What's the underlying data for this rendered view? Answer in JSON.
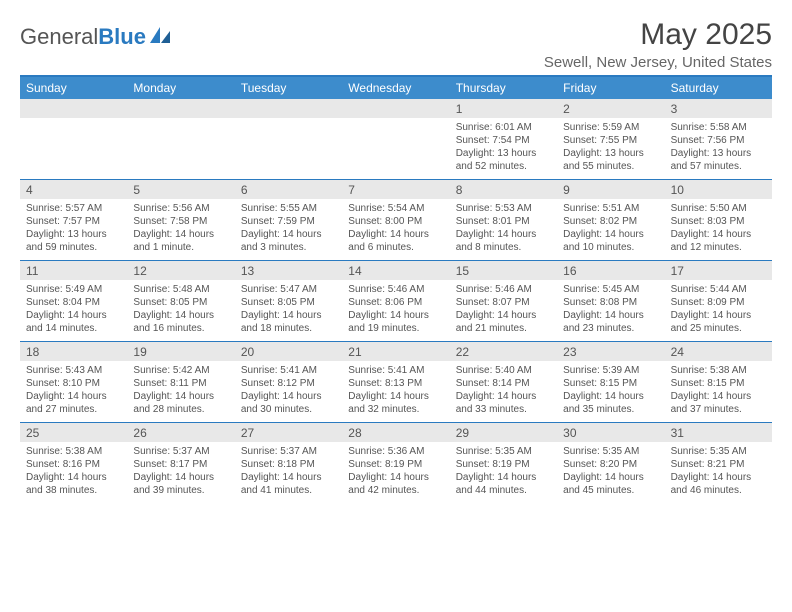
{
  "logo": {
    "word1": "General",
    "word2": "Blue"
  },
  "title": "May 2025",
  "location": "Sewell, New Jersey, United States",
  "colors": {
    "header_bar": "#3d8ccc",
    "border": "#2a7ac0",
    "num_bg": "#e8e8e8",
    "text": "#555555"
  },
  "days_of_week": [
    "Sunday",
    "Monday",
    "Tuesday",
    "Wednesday",
    "Thursday",
    "Friday",
    "Saturday"
  ],
  "weeks": [
    {
      "nums": [
        "",
        "",
        "",
        "",
        "1",
        "2",
        "3"
      ],
      "cells": [
        {},
        {},
        {},
        {},
        {
          "sunrise": "Sunrise: 6:01 AM",
          "sunset": "Sunset: 7:54 PM",
          "dl1": "Daylight: 13 hours",
          "dl2": "and 52 minutes."
        },
        {
          "sunrise": "Sunrise: 5:59 AM",
          "sunset": "Sunset: 7:55 PM",
          "dl1": "Daylight: 13 hours",
          "dl2": "and 55 minutes."
        },
        {
          "sunrise": "Sunrise: 5:58 AM",
          "sunset": "Sunset: 7:56 PM",
          "dl1": "Daylight: 13 hours",
          "dl2": "and 57 minutes."
        }
      ]
    },
    {
      "nums": [
        "4",
        "5",
        "6",
        "7",
        "8",
        "9",
        "10"
      ],
      "cells": [
        {
          "sunrise": "Sunrise: 5:57 AM",
          "sunset": "Sunset: 7:57 PM",
          "dl1": "Daylight: 13 hours",
          "dl2": "and 59 minutes."
        },
        {
          "sunrise": "Sunrise: 5:56 AM",
          "sunset": "Sunset: 7:58 PM",
          "dl1": "Daylight: 14 hours",
          "dl2": "and 1 minute."
        },
        {
          "sunrise": "Sunrise: 5:55 AM",
          "sunset": "Sunset: 7:59 PM",
          "dl1": "Daylight: 14 hours",
          "dl2": "and 3 minutes."
        },
        {
          "sunrise": "Sunrise: 5:54 AM",
          "sunset": "Sunset: 8:00 PM",
          "dl1": "Daylight: 14 hours",
          "dl2": "and 6 minutes."
        },
        {
          "sunrise": "Sunrise: 5:53 AM",
          "sunset": "Sunset: 8:01 PM",
          "dl1": "Daylight: 14 hours",
          "dl2": "and 8 minutes."
        },
        {
          "sunrise": "Sunrise: 5:51 AM",
          "sunset": "Sunset: 8:02 PM",
          "dl1": "Daylight: 14 hours",
          "dl2": "and 10 minutes."
        },
        {
          "sunrise": "Sunrise: 5:50 AM",
          "sunset": "Sunset: 8:03 PM",
          "dl1": "Daylight: 14 hours",
          "dl2": "and 12 minutes."
        }
      ]
    },
    {
      "nums": [
        "11",
        "12",
        "13",
        "14",
        "15",
        "16",
        "17"
      ],
      "cells": [
        {
          "sunrise": "Sunrise: 5:49 AM",
          "sunset": "Sunset: 8:04 PM",
          "dl1": "Daylight: 14 hours",
          "dl2": "and 14 minutes."
        },
        {
          "sunrise": "Sunrise: 5:48 AM",
          "sunset": "Sunset: 8:05 PM",
          "dl1": "Daylight: 14 hours",
          "dl2": "and 16 minutes."
        },
        {
          "sunrise": "Sunrise: 5:47 AM",
          "sunset": "Sunset: 8:05 PM",
          "dl1": "Daylight: 14 hours",
          "dl2": "and 18 minutes."
        },
        {
          "sunrise": "Sunrise: 5:46 AM",
          "sunset": "Sunset: 8:06 PM",
          "dl1": "Daylight: 14 hours",
          "dl2": "and 19 minutes."
        },
        {
          "sunrise": "Sunrise: 5:46 AM",
          "sunset": "Sunset: 8:07 PM",
          "dl1": "Daylight: 14 hours",
          "dl2": "and 21 minutes."
        },
        {
          "sunrise": "Sunrise: 5:45 AM",
          "sunset": "Sunset: 8:08 PM",
          "dl1": "Daylight: 14 hours",
          "dl2": "and 23 minutes."
        },
        {
          "sunrise": "Sunrise: 5:44 AM",
          "sunset": "Sunset: 8:09 PM",
          "dl1": "Daylight: 14 hours",
          "dl2": "and 25 minutes."
        }
      ]
    },
    {
      "nums": [
        "18",
        "19",
        "20",
        "21",
        "22",
        "23",
        "24"
      ],
      "cells": [
        {
          "sunrise": "Sunrise: 5:43 AM",
          "sunset": "Sunset: 8:10 PM",
          "dl1": "Daylight: 14 hours",
          "dl2": "and 27 minutes."
        },
        {
          "sunrise": "Sunrise: 5:42 AM",
          "sunset": "Sunset: 8:11 PM",
          "dl1": "Daylight: 14 hours",
          "dl2": "and 28 minutes."
        },
        {
          "sunrise": "Sunrise: 5:41 AM",
          "sunset": "Sunset: 8:12 PM",
          "dl1": "Daylight: 14 hours",
          "dl2": "and 30 minutes."
        },
        {
          "sunrise": "Sunrise: 5:41 AM",
          "sunset": "Sunset: 8:13 PM",
          "dl1": "Daylight: 14 hours",
          "dl2": "and 32 minutes."
        },
        {
          "sunrise": "Sunrise: 5:40 AM",
          "sunset": "Sunset: 8:14 PM",
          "dl1": "Daylight: 14 hours",
          "dl2": "and 33 minutes."
        },
        {
          "sunrise": "Sunrise: 5:39 AM",
          "sunset": "Sunset: 8:15 PM",
          "dl1": "Daylight: 14 hours",
          "dl2": "and 35 minutes."
        },
        {
          "sunrise": "Sunrise: 5:38 AM",
          "sunset": "Sunset: 8:15 PM",
          "dl1": "Daylight: 14 hours",
          "dl2": "and 37 minutes."
        }
      ]
    },
    {
      "nums": [
        "25",
        "26",
        "27",
        "28",
        "29",
        "30",
        "31"
      ],
      "cells": [
        {
          "sunrise": "Sunrise: 5:38 AM",
          "sunset": "Sunset: 8:16 PM",
          "dl1": "Daylight: 14 hours",
          "dl2": "and 38 minutes."
        },
        {
          "sunrise": "Sunrise: 5:37 AM",
          "sunset": "Sunset: 8:17 PM",
          "dl1": "Daylight: 14 hours",
          "dl2": "and 39 minutes."
        },
        {
          "sunrise": "Sunrise: 5:37 AM",
          "sunset": "Sunset: 8:18 PM",
          "dl1": "Daylight: 14 hours",
          "dl2": "and 41 minutes."
        },
        {
          "sunrise": "Sunrise: 5:36 AM",
          "sunset": "Sunset: 8:19 PM",
          "dl1": "Daylight: 14 hours",
          "dl2": "and 42 minutes."
        },
        {
          "sunrise": "Sunrise: 5:35 AM",
          "sunset": "Sunset: 8:19 PM",
          "dl1": "Daylight: 14 hours",
          "dl2": "and 44 minutes."
        },
        {
          "sunrise": "Sunrise: 5:35 AM",
          "sunset": "Sunset: 8:20 PM",
          "dl1": "Daylight: 14 hours",
          "dl2": "and 45 minutes."
        },
        {
          "sunrise": "Sunrise: 5:35 AM",
          "sunset": "Sunset: 8:21 PM",
          "dl1": "Daylight: 14 hours",
          "dl2": "and 46 minutes."
        }
      ]
    }
  ]
}
